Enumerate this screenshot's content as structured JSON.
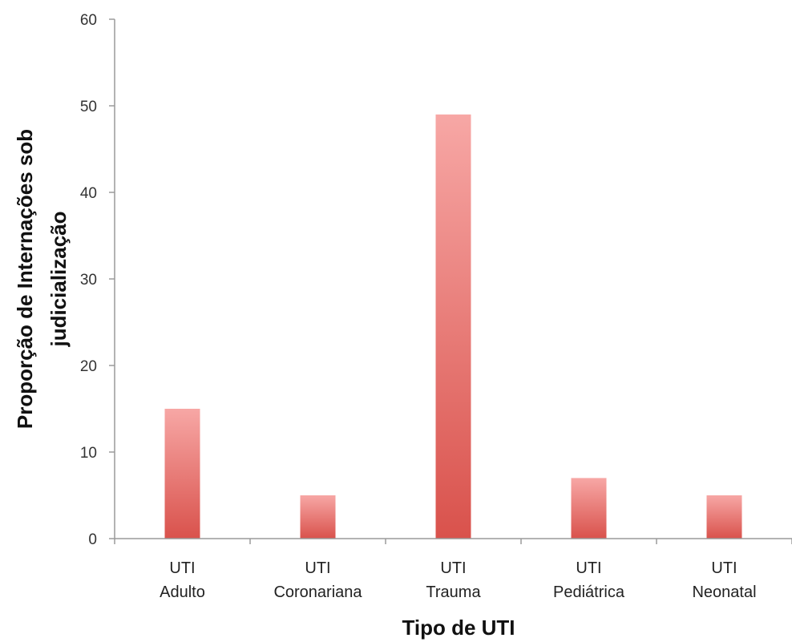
{
  "chart_data": {
    "type": "bar",
    "title": "",
    "xlabel": "Tipo de UTI",
    "ylabel_lines": [
      "Proporção de Internações sob",
      "judicialização"
    ],
    "categories": [
      [
        "UTI",
        "Adulto"
      ],
      [
        "UTI",
        "Coronariana"
      ],
      [
        "UTI",
        "Trauma"
      ],
      [
        "UTI",
        "Pediátrica"
      ],
      [
        "UTI",
        "Neonatal"
      ]
    ],
    "values": [
      15,
      5,
      49,
      7,
      5
    ],
    "ylim": [
      0,
      60
    ],
    "yticks": [
      0,
      10,
      20,
      30,
      40,
      50,
      60
    ],
    "grid": false,
    "legend": "none",
    "bar_color_top": "#f7a7a5",
    "bar_color_bottom": "#d9524c",
    "axis_color": "#9a9a9a"
  }
}
